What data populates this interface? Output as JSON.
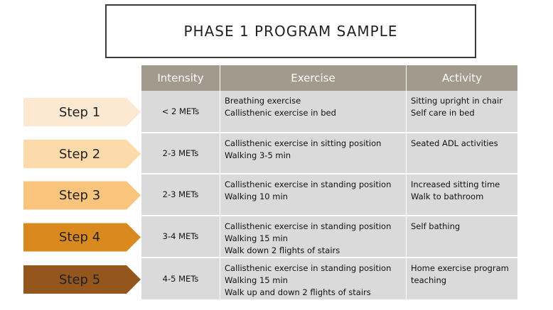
{
  "header": {
    "title": "PHASE 1 PROGRAM SAMPLE"
  },
  "table": {
    "headers": [
      "Intensity",
      "Exercise",
      "Activity"
    ],
    "rows": [
      {
        "step": "Step 1",
        "intensity": "< 2 METs",
        "exercise": [
          "Breathing exercise",
          "Callisthenic exercise in bed"
        ],
        "activity": [
          "Sitting upright in chair",
          "Self care in bed"
        ]
      },
      {
        "step": "Step 2",
        "intensity": "2-3 METs",
        "exercise": [
          "Callisthenic exercise in sitting position",
          "Walking 3-5 min"
        ],
        "activity": [
          "Seated ADL activities"
        ]
      },
      {
        "step": "Step 3",
        "intensity": "2-3 METs",
        "exercise": [
          "Callisthenic exercise in standing position",
          "Walking 10 min"
        ],
        "activity": [
          "Increased sitting time",
          "Walk to bathroom"
        ]
      },
      {
        "step": "Step 4",
        "intensity": "3-4 METs",
        "exercise": [
          "Callisthenic exercise in standing position",
          "Walking 15 min",
          "Walk down 2 flights of stairs"
        ],
        "activity": [
          "Self bathing"
        ]
      },
      {
        "step": "Step 5",
        "intensity": "4-5 METs",
        "exercise": [
          "Callisthenic exercise in standing position",
          "Walking 15 min",
          "Walk up and down 2 flights of stairs"
        ],
        "activity": [
          "Home exercise program teaching"
        ]
      }
    ]
  }
}
